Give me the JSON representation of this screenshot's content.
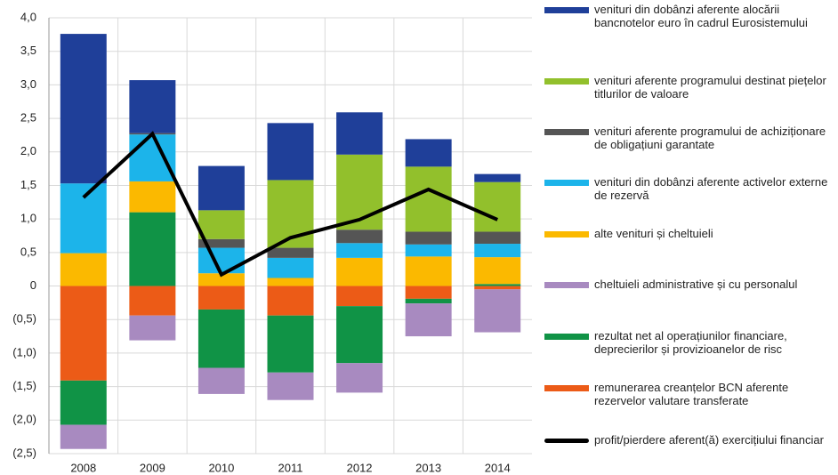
{
  "chart_data": {
    "type": "bar",
    "categories": [
      "2008",
      "2009",
      "2010",
      "2011",
      "2012",
      "2013",
      "2014"
    ],
    "series": [
      {
        "name": "venituri din dobânzi aferente alocării bancnotelor euro în cadrul Eurosistemului",
        "color": "#1f3f99",
        "values": [
          2.23,
          0.79,
          0.66,
          0.85,
          0.63,
          0.41,
          0.12
        ]
      },
      {
        "name": "venituri aferente programului destinat piețelor titlurilor de valoare",
        "color": "#92c02c",
        "values": [
          0,
          0,
          0.43,
          1.01,
          1.12,
          0.97,
          0.74
        ]
      },
      {
        "name": "venituri aferente programului de achiziționare de obligațiuni garantate",
        "color": "#555555",
        "values": [
          0,
          0.02,
          0.13,
          0.15,
          0.2,
          0.19,
          0.18
        ]
      },
      {
        "name": "venituri din dobânzi aferente activelor externe de rezervă",
        "color": "#1cb4ea",
        "values": [
          1.04,
          0.7,
          0.38,
          0.3,
          0.22,
          0.18,
          0.2
        ]
      },
      {
        "name": "alte venituri și cheltuieli",
        "color": "#fbb900",
        "values": [
          0.49,
          0.46,
          0.19,
          0.12,
          0.42,
          0.44,
          0.4
        ]
      },
      {
        "name": "cheltuieli administrative  și cu personalul",
        "color": "#a88ac0",
        "values": [
          -0.36,
          -0.37,
          -0.39,
          -0.41,
          -0.44,
          -0.49,
          -0.64
        ]
      },
      {
        "name": "rezultat net al operațiunilor financiare, deprecierilor și provizioanelor de risc",
        "color": "#109346",
        "values": [
          -0.66,
          1.1,
          -0.87,
          -0.85,
          -0.85,
          -0.07,
          0.03
        ]
      },
      {
        "name": "remunerarea creanțelor BCN aferente rezervelor valutare transferate",
        "color": "#ec5b17",
        "values": [
          -1.41,
          -0.44,
          -0.35,
          -0.44,
          -0.3,
          -0.19,
          -0.05
        ]
      },
      {
        "name": "profit/pierdere aferent(ă) exercițiului financiar",
        "color": "#000000",
        "type": "line",
        "values": [
          1.32,
          2.27,
          0.17,
          0.72,
          0.99,
          1.44,
          0.99
        ]
      }
    ],
    "ylim": [
      -2.5,
      4
    ],
    "yticks": [
      {
        "value": -2.5,
        "label": "(2,5)"
      },
      {
        "value": -2,
        "label": "(2,0)"
      },
      {
        "value": -1.5,
        "label": "(1,5)"
      },
      {
        "value": -1,
        "label": "(1,0)"
      },
      {
        "value": -0.5,
        "label": "(0,5)"
      },
      0,
      {
        "value": 0.5,
        "label": "0,5"
      },
      {
        "value": 1,
        "label": "1,0"
      },
      {
        "value": 1.5,
        "label": "1,5"
      },
      {
        "value": 2,
        "label": "2,0"
      },
      {
        "value": 2.5,
        "label": "2,5"
      },
      {
        "value": 3,
        "label": "3,0"
      },
      {
        "value": 3.5,
        "label": "3,5"
      },
      {
        "value": 4,
        "label": "4,0"
      }
    ],
    "grid": true
  }
}
